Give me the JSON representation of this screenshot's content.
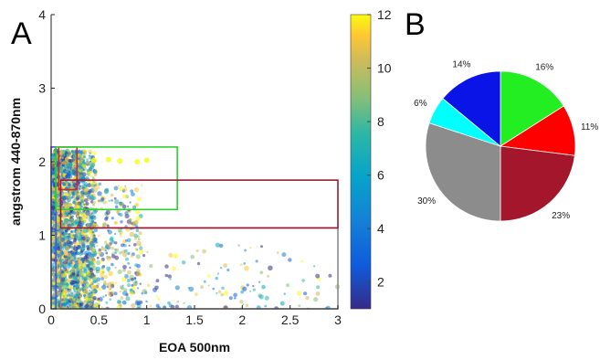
{
  "panels": {
    "a_letter": "A",
    "b_letter": "B"
  },
  "chart_data": [
    {
      "type": "scatter",
      "xlabel": "EOA 500nm",
      "ylabel": "angstrom 440-870nm",
      "xlim": [
        0,
        3
      ],
      "ylim": [
        0,
        4
      ],
      "x_ticks": [
        "0",
        "0.5",
        "1",
        "1.5",
        "2",
        "2.5",
        "3"
      ],
      "y_ticks": [
        "0",
        "1",
        "2",
        "3",
        "4"
      ],
      "color_by": "month",
      "colorbar": {
        "min": 1,
        "max": 12,
        "ticks": [
          "2",
          "4",
          "6",
          "8",
          "10",
          "12"
        ]
      },
      "points_summary": "dense cluster at AOD 0-0.5 with Angstrom 0-2.2; sparse tail to AOD 3",
      "regions": [
        {
          "x": [
            0.0,
            0.05
          ],
          "y": [
            0.0,
            2.2
          ],
          "color": "#4a52d6"
        },
        {
          "x": [
            0.08,
            0.27
          ],
          "y": [
            1.62,
            2.2
          ],
          "color": "#e0202a"
        },
        {
          "x": [
            0.05,
            1.32
          ],
          "y": [
            1.35,
            2.2
          ],
          "color": "#2bd12b"
        },
        {
          "x": [
            0.1,
            3.0
          ],
          "y": [
            0.0,
            1.1
          ],
          "color": "#8b8b8b"
        },
        {
          "x": [
            0.1,
            3.0
          ],
          "y": [
            1.1,
            1.75
          ],
          "color": "#9b1b30"
        }
      ]
    },
    {
      "type": "pie",
      "slices": [
        {
          "label": "16%",
          "value": 16,
          "color": "#22ee22"
        },
        {
          "label": "11%",
          "value": 11,
          "color": "#ff0000"
        },
        {
          "label": "23%",
          "value": 23,
          "color": "#a3162c"
        },
        {
          "label": "30%",
          "value": 30,
          "color": "#8c8c8c"
        },
        {
          "label": "6%",
          "value": 6,
          "color": "#00ffff"
        },
        {
          "label": "14%",
          "value": 14,
          "color": "#0a14e6"
        }
      ]
    }
  ]
}
